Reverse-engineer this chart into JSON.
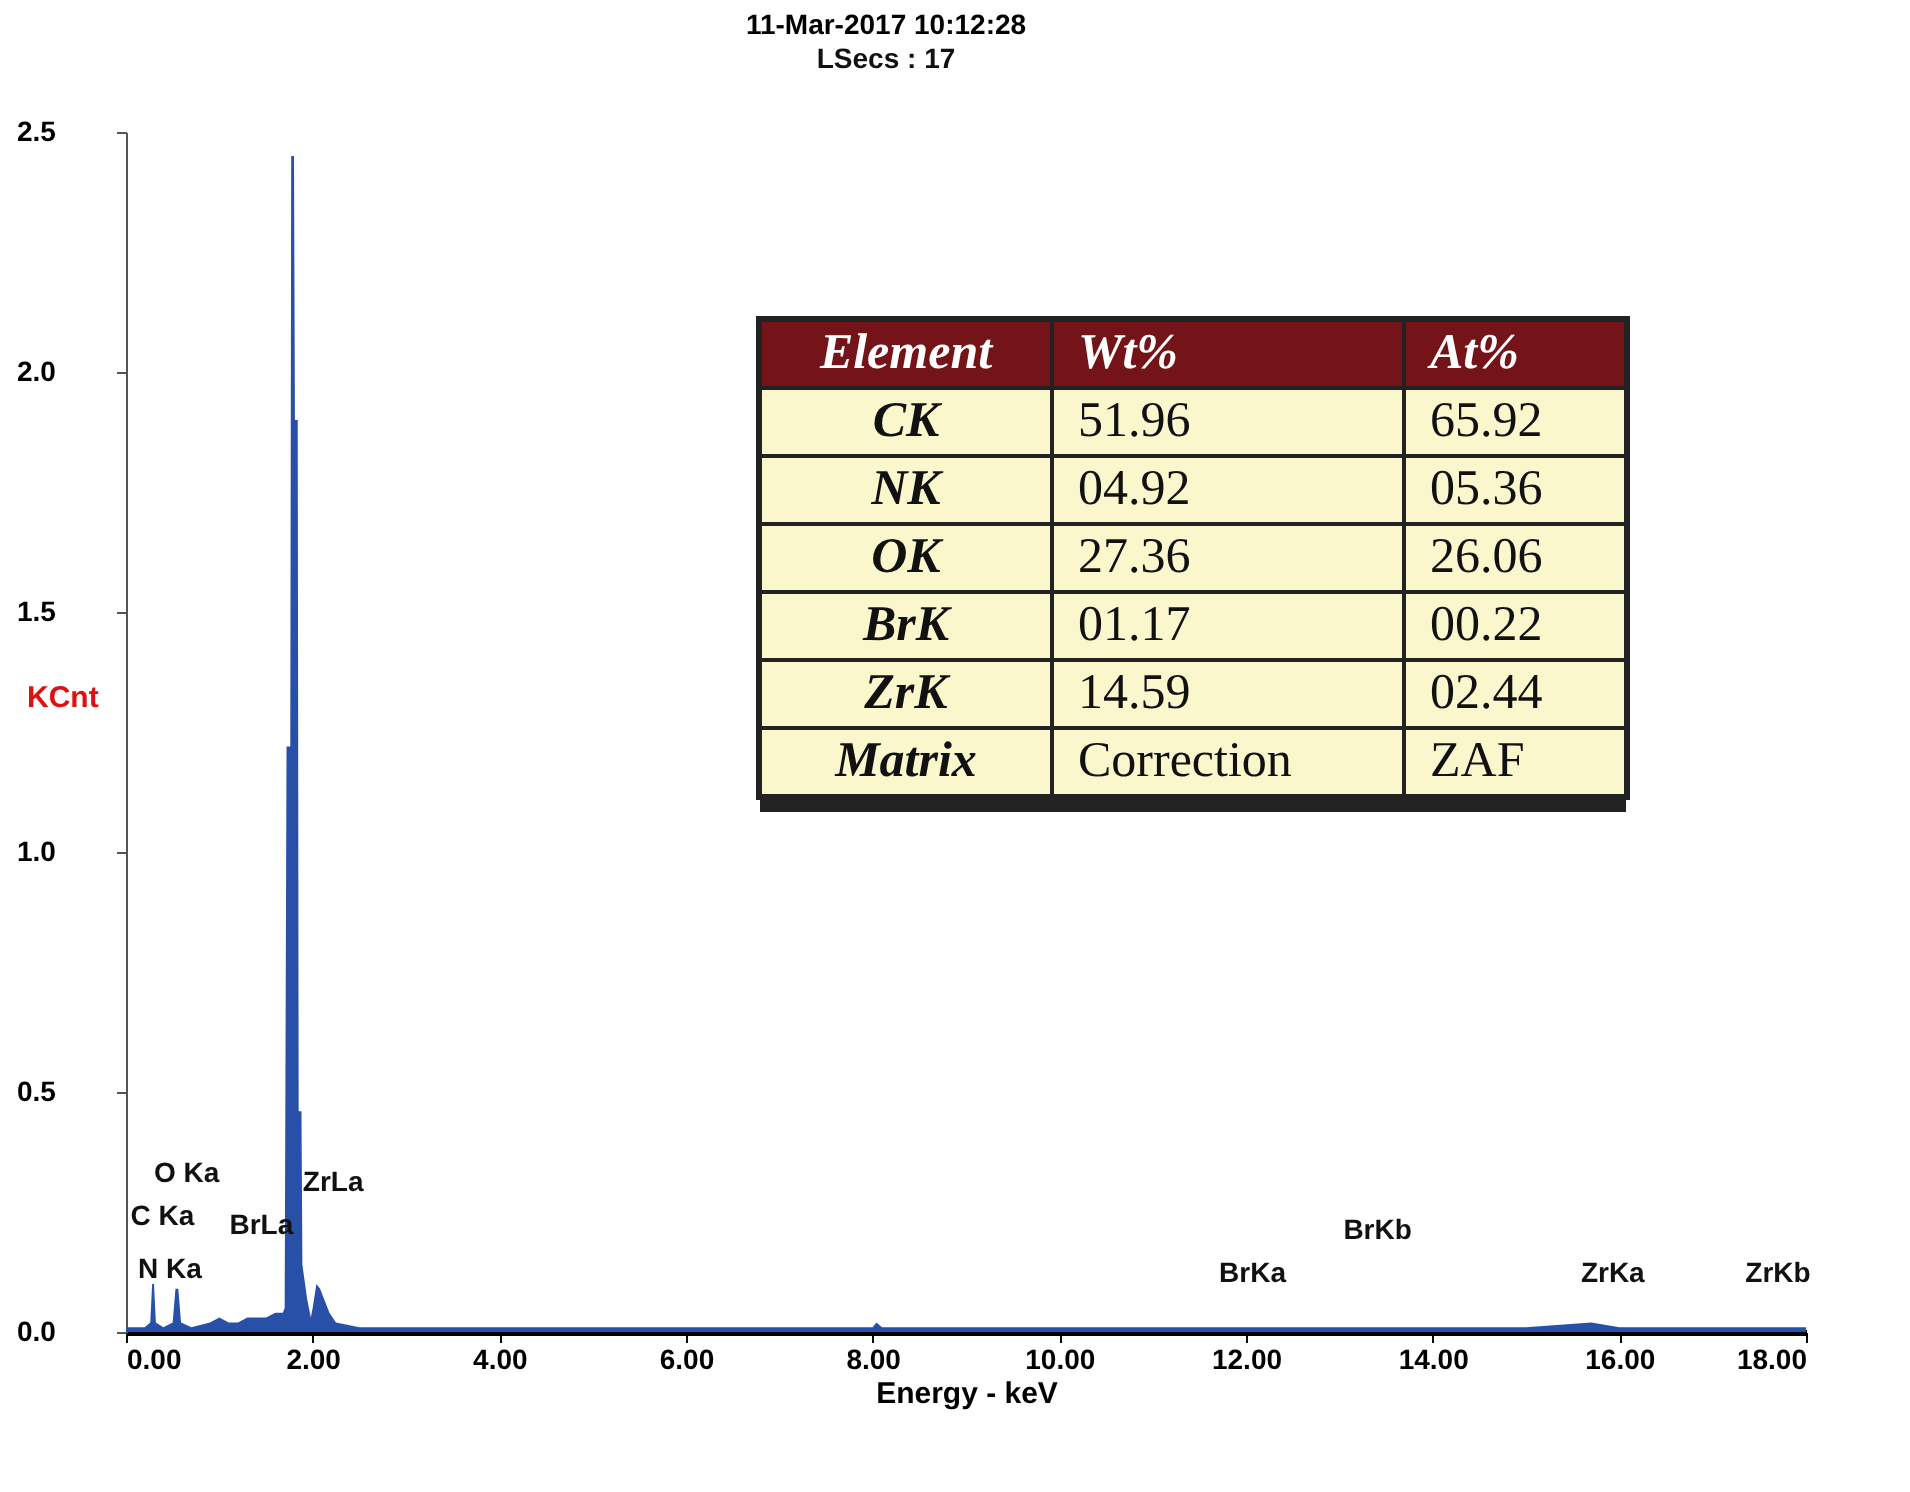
{
  "chart_data": [
    {
      "type": "area",
      "title": "11-Mar-2017 10:12:28",
      "subtitle": "LSecs : 17",
      "xlabel": "Energy - keV",
      "ylabel": "KCnt",
      "x": [
        0,
        0.2,
        0.26,
        0.28,
        0.3,
        0.32,
        0.4,
        0.5,
        0.53,
        0.56,
        0.59,
        0.7,
        0.9,
        1.0,
        1.1,
        1.2,
        1.3,
        1.4,
        1.5,
        1.6,
        1.68,
        1.7,
        1.72,
        1.76,
        1.77,
        1.8,
        1.81,
        1.84,
        1.85,
        1.88,
        1.89,
        1.94,
        1.98,
        2.0,
        2.04,
        2.08,
        2.12,
        2.18,
        2.25,
        2.5,
        3.0,
        3.5,
        4.0,
        5.0,
        6.0,
        7.0,
        8.0,
        8.04,
        8.1,
        9.0,
        10.0,
        11.0,
        12.0,
        13.0,
        14.0,
        15.0,
        15.7,
        16.0,
        17.0,
        18.0
      ],
      "series": [
        {
          "color": "#2850a8",
          "values": [
            0.01,
            0.01,
            0.02,
            0.1,
            0.1,
            0.02,
            0.01,
            0.02,
            0.09,
            0.09,
            0.02,
            0.01,
            0.02,
            0.03,
            0.02,
            0.02,
            0.03,
            0.03,
            0.03,
            0.04,
            0.04,
            0.05,
            1.22,
            1.22,
            2.45,
            2.45,
            1.9,
            1.9,
            0.46,
            0.46,
            0.14,
            0.07,
            0.03,
            0.05,
            0.1,
            0.09,
            0.07,
            0.04,
            0.02,
            0.01,
            0.01,
            0.01,
            0.01,
            0.01,
            0.01,
            0.01,
            0.01,
            0.02,
            0.01,
            0.01,
            0.01,
            0.01,
            0.01,
            0.01,
            0.01,
            0.01,
            0.02,
            0.01,
            0.01,
            0.01
          ]
        }
      ],
      "xlim": [
        0,
        18
      ],
      "ylim": [
        0,
        2.5
      ],
      "xticks": [
        {
          "value": 0,
          "label": "0.00"
        },
        {
          "value": 2,
          "label": "2.00"
        },
        {
          "value": 4,
          "label": "4.00"
        },
        {
          "value": 6,
          "label": "6.00"
        },
        {
          "value": 8,
          "label": "8.00"
        },
        {
          "value": 10,
          "label": "10.00"
        },
        {
          "value": 12,
          "label": "12.00"
        },
        {
          "value": 14,
          "label": "14.00"
        },
        {
          "value": 16,
          "label": "16.00"
        },
        {
          "value": 18,
          "label": "18.00"
        }
      ],
      "yticks": [
        {
          "value": 0,
          "label": "0.0"
        },
        {
          "value": 0.5,
          "label": "0.5"
        },
        {
          "value": 1,
          "label": "1.0"
        },
        {
          "value": 1.5,
          "label": "1.5"
        },
        {
          "value": 2,
          "label": "2.0"
        },
        {
          "value": 2.5,
          "label": "2.5"
        }
      ],
      "annotations": [
        "C Ka",
        "N Ka",
        "O Ka",
        "BrLa",
        "ZrLa",
        "BrKa",
        "BrKb",
        "ZrKa",
        "ZrKb"
      ]
    },
    {
      "type": "other",
      "annotations": [
        "Element",
        "Wt%",
        "At%",
        "CK",
        "51.96",
        "65.92",
        "NK",
        "04.92",
        "05.36",
        "OK",
        "27.36",
        "26.06",
        "BrK",
        "01.17",
        "00.22",
        "ZrK",
        "14.59",
        "02.44",
        "Matrix",
        "Correction",
        "ZAF"
      ]
    }
  ]
}
